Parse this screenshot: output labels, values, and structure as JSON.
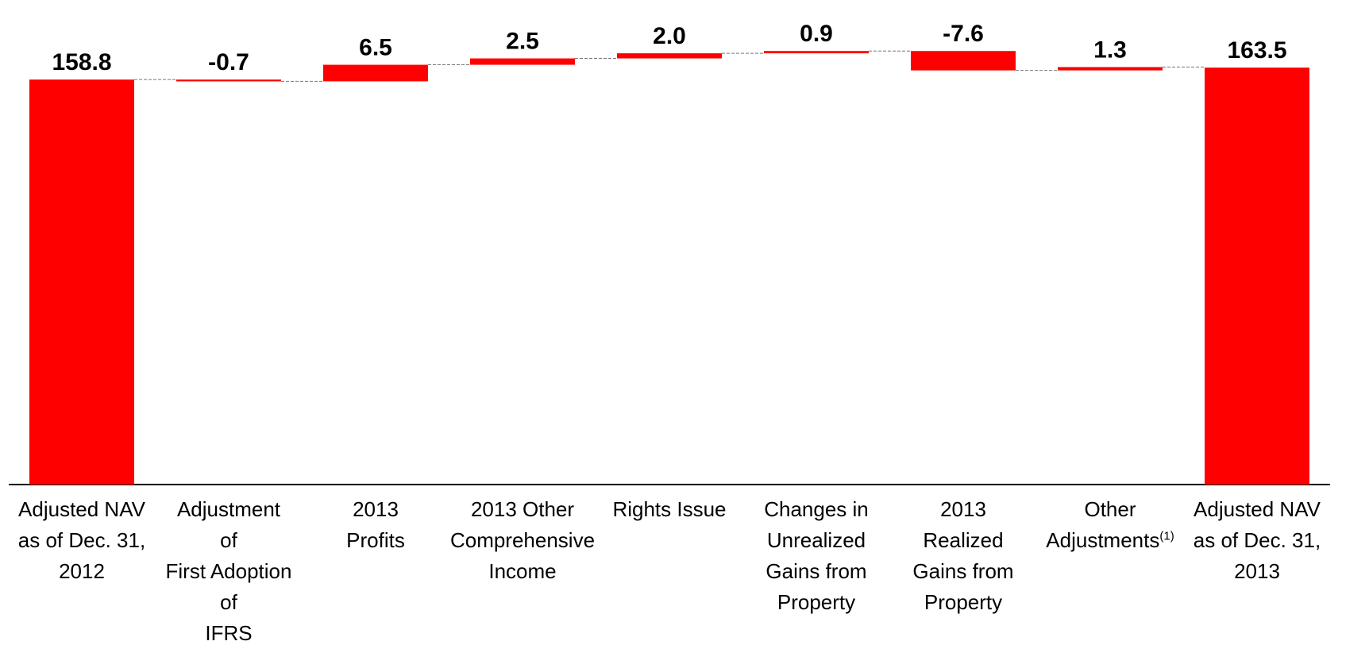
{
  "chart_data": {
    "type": "waterfall",
    "categories": [
      "Adjusted NAV\nas of Dec. 31,\n2012",
      "Adjustment\nof\nFirst Adoption\nof\nIFRS",
      "2013\nProfits",
      "2013 Other\nComprehensive\nIncome",
      "Rights Issue",
      "Changes in\nUnrealized\nGains from\nProperty",
      "2013\nRealized\nGains from\nProperty",
      "Other\nAdjustments",
      "Adjusted NAV\nas of Dec. 31,\n2013"
    ],
    "values": [
      158.8,
      -0.7,
      6.5,
      2.5,
      2.0,
      0.9,
      -7.6,
      1.3,
      163.5
    ],
    "value_labels": [
      "158.8",
      "-0.7",
      "6.5",
      "2.5",
      "2.0",
      "0.9",
      "-7.6",
      "1.3",
      "163.5"
    ],
    "totals": [
      true,
      false,
      false,
      false,
      false,
      false,
      false,
      false,
      true
    ],
    "category_notes": [
      null,
      null,
      null,
      null,
      null,
      null,
      null,
      "(1)",
      null
    ],
    "color": "#ff0000",
    "ylim": [
      0,
      190
    ]
  }
}
